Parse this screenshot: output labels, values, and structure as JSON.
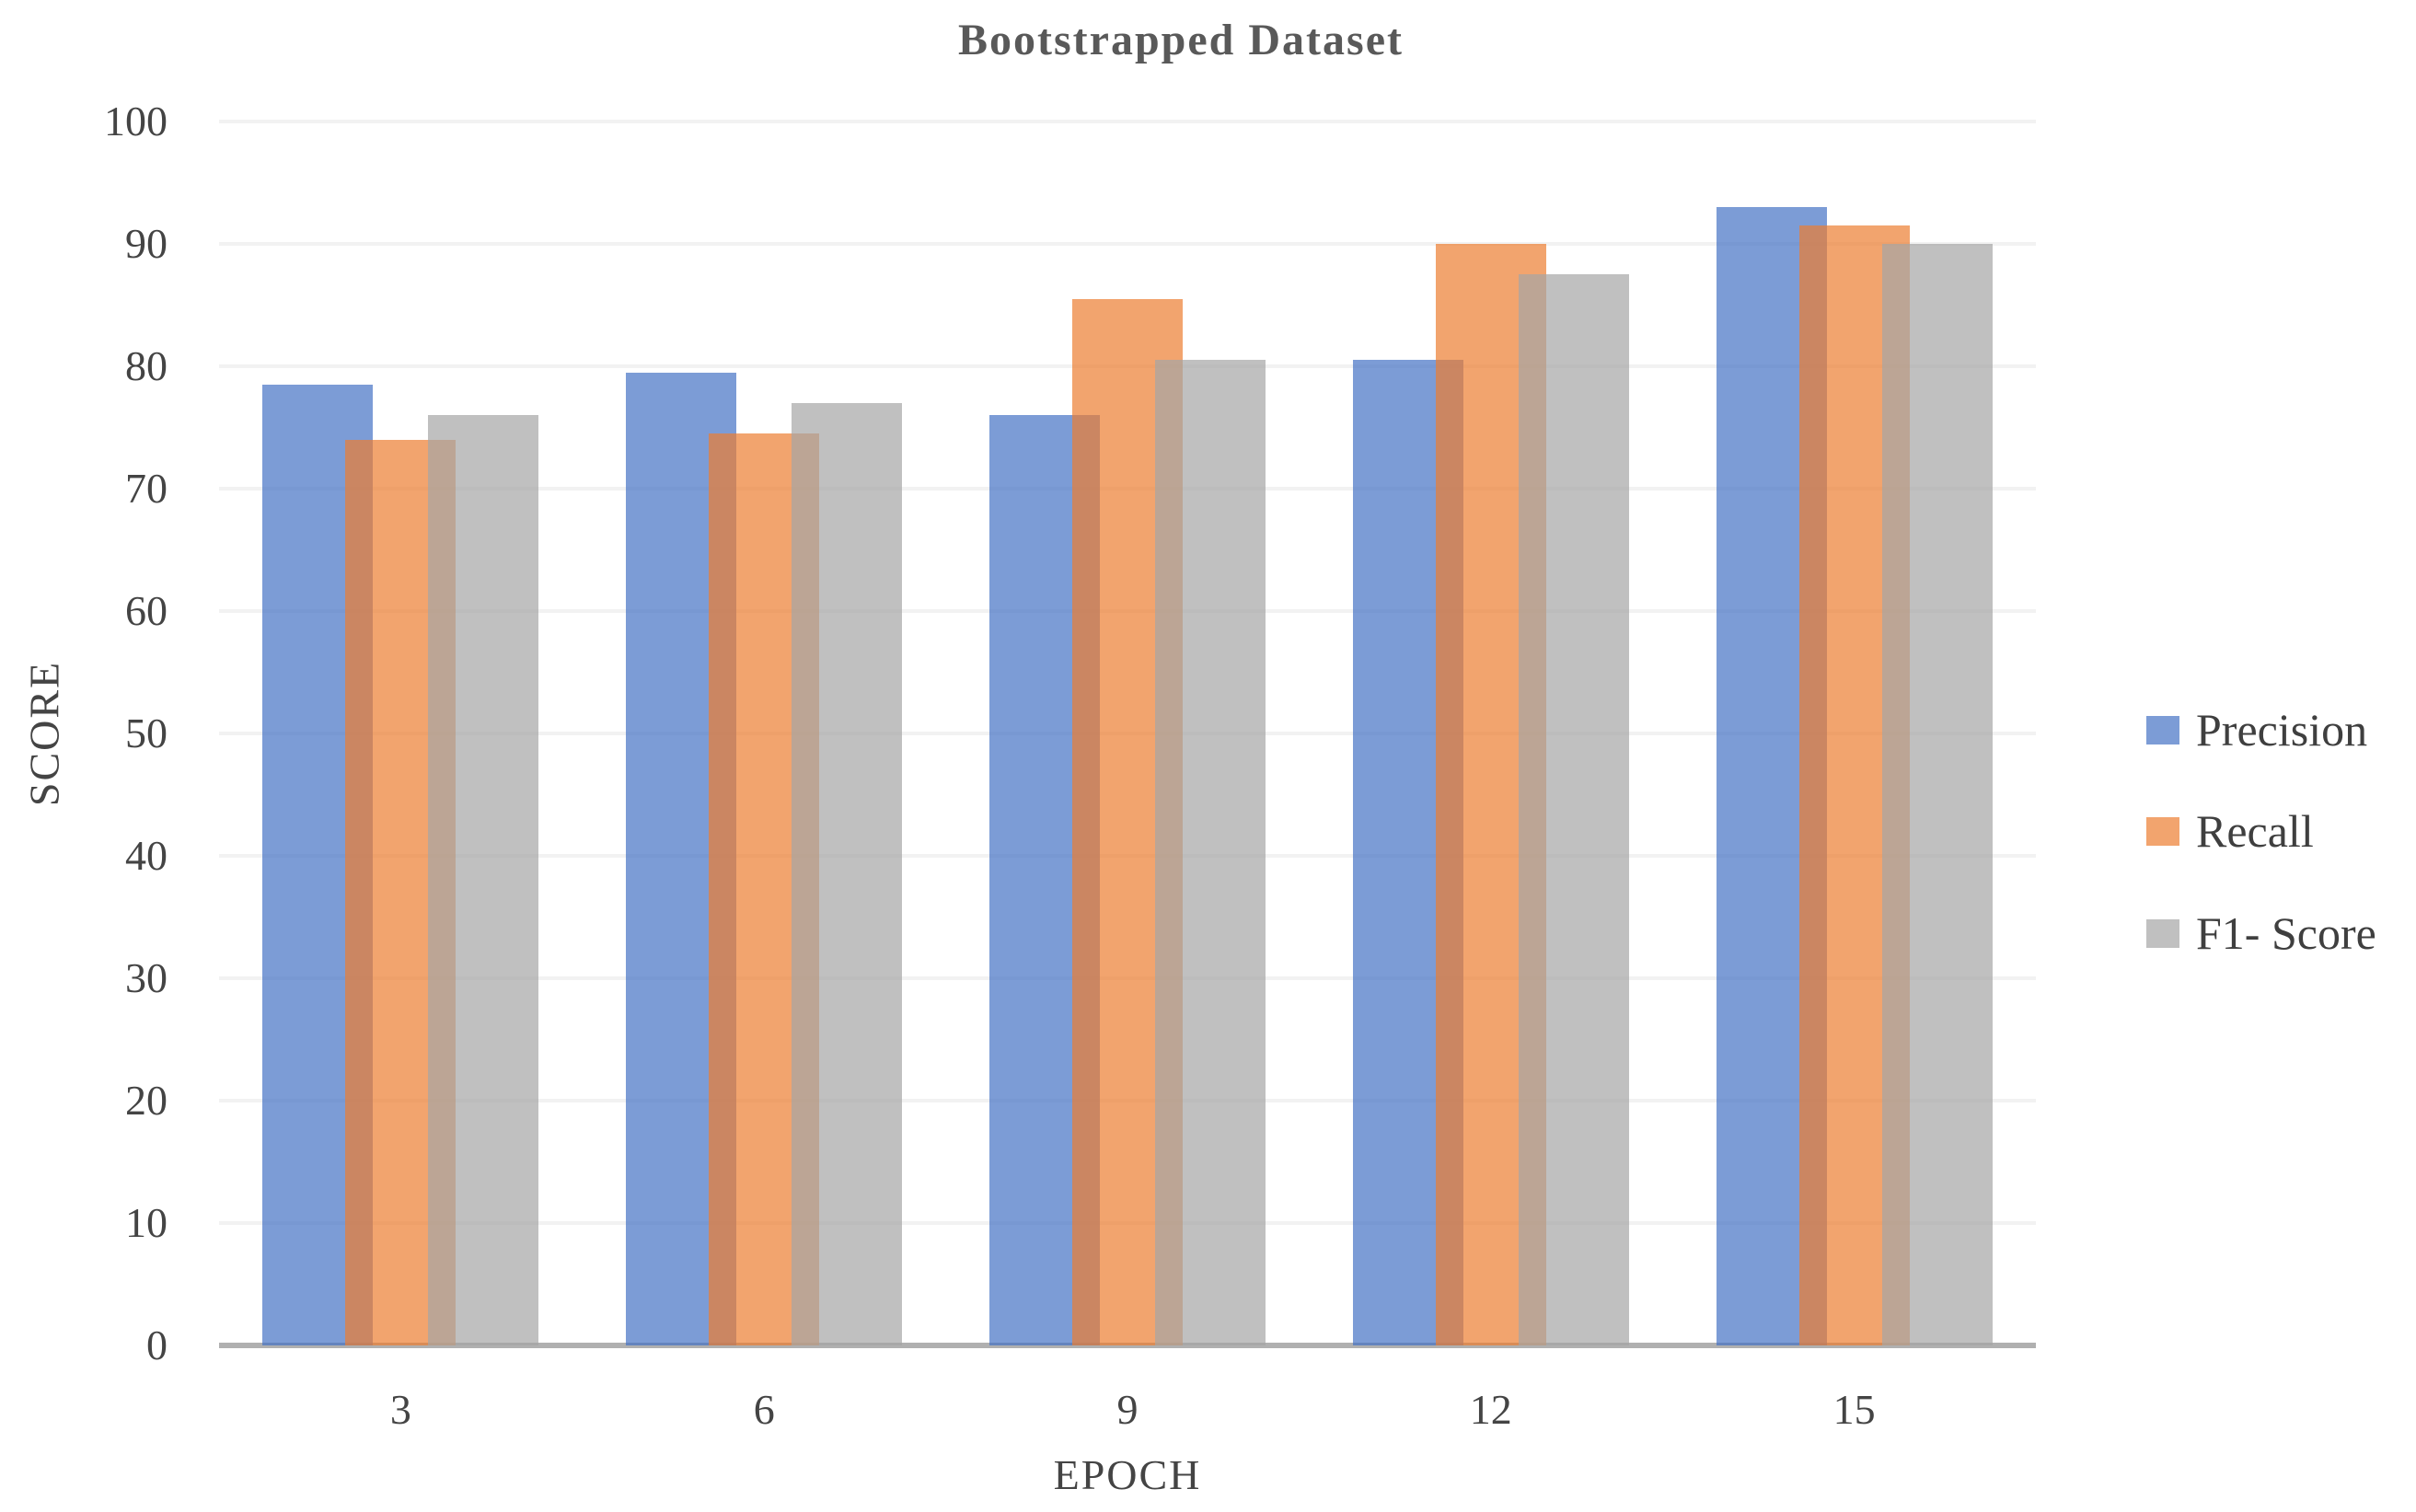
{
  "chart_data": {
    "type": "bar",
    "title": "Bootstrapped Dataset",
    "xlabel": "EPOCH",
    "ylabel": "SCORE",
    "categories": [
      "3",
      "6",
      "9",
      "12",
      "15"
    ],
    "series": [
      {
        "name": "Precision",
        "color": "#4472C4",
        "values": [
          78.5,
          79.5,
          76,
          80.5,
          93
        ]
      },
      {
        "name": "Recall",
        "color": "#ED7D31",
        "values": [
          74,
          74.5,
          85.5,
          90,
          91.5
        ]
      },
      {
        "name": "F1- Score",
        "color": "#A5A5A5",
        "values": [
          76,
          77,
          80.5,
          87.5,
          90
        ]
      }
    ],
    "ylim": [
      0,
      100
    ],
    "ytick_step": 10,
    "grid": true,
    "legend_position": "right",
    "bar_opacity": 0.7
  }
}
